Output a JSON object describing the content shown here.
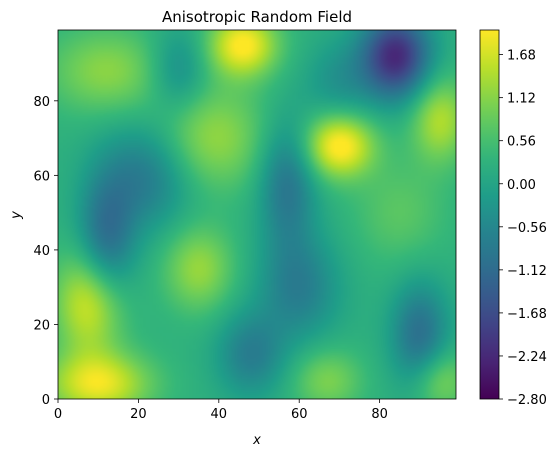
{
  "chart_data": {
    "type": "heatmap",
    "title": "Anisotropic Random Field",
    "xlabel": "x",
    "ylabel": "y",
    "xlim": [
      0,
      99
    ],
    "ylim": [
      0,
      99
    ],
    "x_ticks": [
      0,
      20,
      40,
      60,
      80
    ],
    "y_ticks": [
      0,
      20,
      40,
      60,
      80
    ],
    "colorbar": {
      "colormap": "viridis",
      "range": [
        -2.8,
        2.0
      ],
      "ticks": [
        "-2.80",
        "-2.24",
        "-1.68",
        "-1.12",
        "-0.56",
        "0.00",
        "0.56",
        "1.12",
        "1.68"
      ]
    },
    "blobs": [
      {
        "x": 84,
        "y": 92,
        "value": -2.5,
        "sx": 6,
        "sy": 8
      },
      {
        "x": 12,
        "y": 42,
        "value": -1.4,
        "sx": 5,
        "sy": 12
      },
      {
        "x": 22,
        "y": 60,
        "value": -1.1,
        "sx": 8,
        "sy": 10
      },
      {
        "x": 57,
        "y": 58,
        "value": -1.2,
        "sx": 5,
        "sy": 12
      },
      {
        "x": 60,
        "y": 30,
        "value": -1.0,
        "sx": 7,
        "sy": 10
      },
      {
        "x": 90,
        "y": 17,
        "value": -1.3,
        "sx": 5,
        "sy": 10
      },
      {
        "x": 48,
        "y": 12,
        "value": -1.0,
        "sx": 6,
        "sy": 8
      },
      {
        "x": 30,
        "y": 88,
        "value": -0.8,
        "sx": 5,
        "sy": 8
      },
      {
        "x": 70,
        "y": 85,
        "value": -0.6,
        "sx": 6,
        "sy": 8
      },
      {
        "x": 46,
        "y": 95,
        "value": 1.8,
        "sx": 6,
        "sy": 6
      },
      {
        "x": 70,
        "y": 68,
        "value": 1.9,
        "sx": 6,
        "sy": 6
      },
      {
        "x": 8,
        "y": 26,
        "value": 1.6,
        "sx": 6,
        "sy": 10
      },
      {
        "x": 10,
        "y": 4,
        "value": 1.6,
        "sx": 9,
        "sy": 6
      },
      {
        "x": 35,
        "y": 35,
        "value": 1.0,
        "sx": 6,
        "sy": 8
      },
      {
        "x": 38,
        "y": 70,
        "value": 1.0,
        "sx": 10,
        "sy": 10
      },
      {
        "x": 95,
        "y": 75,
        "value": 1.2,
        "sx": 5,
        "sy": 8
      },
      {
        "x": 12,
        "y": 88,
        "value": 0.9,
        "sx": 10,
        "sy": 8
      },
      {
        "x": 85,
        "y": 50,
        "value": 0.5,
        "sx": 8,
        "sy": 10
      },
      {
        "x": 95,
        "y": 5,
        "value": 0.9,
        "sx": 5,
        "sy": 6
      },
      {
        "x": 67,
        "y": 5,
        "value": 0.8,
        "sx": 6,
        "sy": 6
      }
    ]
  }
}
